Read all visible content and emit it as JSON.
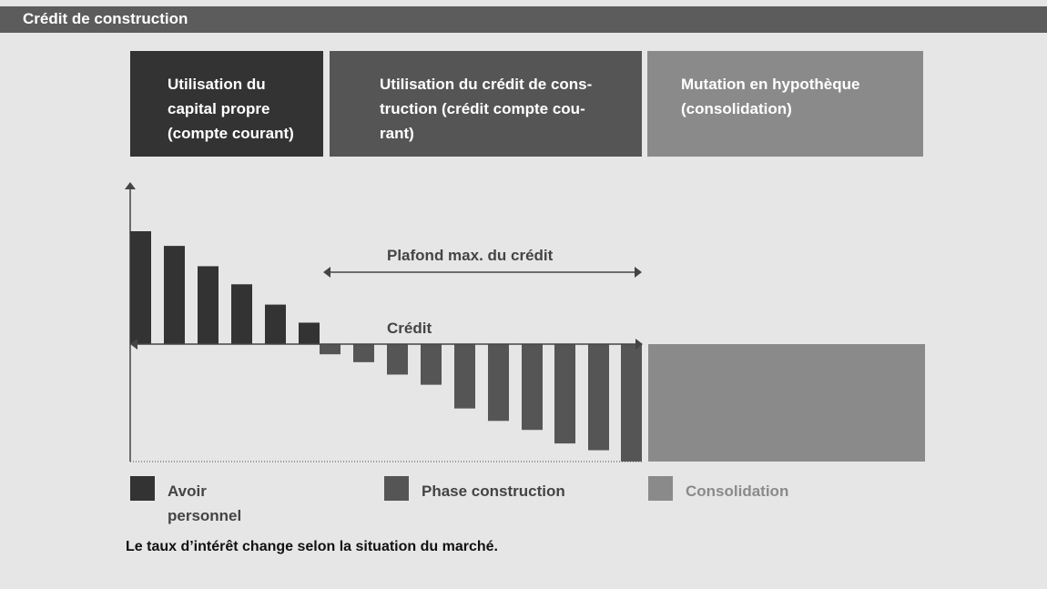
{
  "title": "Crédit de construction",
  "phases": [
    {
      "label": "Utilisation du\ncapital propre\n(compte courant)"
    },
    {
      "label": "Utilisation du crédit de cons-\ntruction (crédit compte cou-\nrant)"
    },
    {
      "label": "Mutation en hypothèque\n(consolidation)"
    }
  ],
  "chart_data": {
    "type": "bar",
    "annotations": [
      "Plafond max. du crédit",
      "Crédit"
    ],
    "series": [
      {
        "name": "Avoir personnel",
        "color": "#333333",
        "values": [
          100,
          87,
          69,
          53,
          35,
          19
        ]
      },
      {
        "name": "Phase construction",
        "color": "#555555",
        "values": [
          -9,
          -16,
          -27,
          -36,
          -57,
          -68,
          -76,
          -88,
          -94,
          -104
        ]
      },
      {
        "name": "Consolidation",
        "color": "#8a8a8a",
        "values": [
          -104
        ]
      }
    ],
    "ylim": [
      -104,
      100
    ],
    "grid": false,
    "legend": "bottom"
  },
  "legend": [
    {
      "label": "Avoir\npersonnel",
      "color": "#333333"
    },
    {
      "label": "Phase construction",
      "color": "#555555"
    },
    {
      "label": "Consolidation",
      "color": "#8a8a8a"
    }
  ],
  "footnote": "Le taux d’intérêt change selon la situation du marché."
}
